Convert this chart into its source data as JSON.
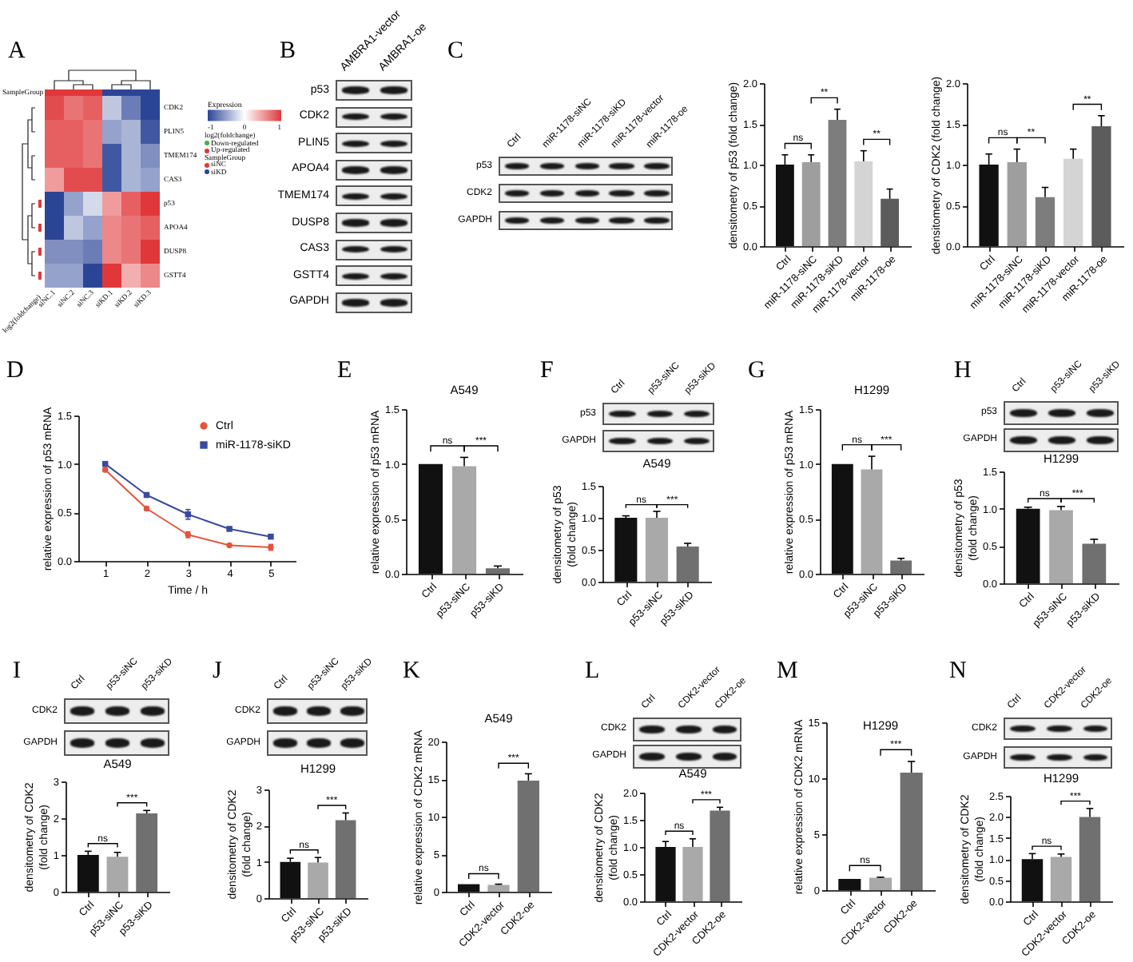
{
  "chart_data": [
    {
      "type": "heatmap",
      "categories": [
        "siNC.1",
        "siNC.2",
        "siNC.3",
        "siKD.1",
        "siKD.2",
        "siKD.3"
      ],
      "y_categories": [
        "CDK2",
        "PLIN5",
        "TMEM174",
        "CAS3",
        "p53",
        "APOA4",
        "DUSP8",
        "GSTT4"
      ],
      "cells": [
        [
          0.9,
          0.7,
          0.8,
          -0.3,
          -0.7,
          -1.0
        ],
        [
          0.8,
          0.8,
          0.7,
          -0.5,
          -0.4,
          -0.9
        ],
        [
          0.8,
          0.8,
          0.7,
          -0.9,
          -0.4,
          -0.6
        ],
        [
          0.5,
          0.9,
          0.9,
          -0.9,
          -0.4,
          -0.5
        ],
        [
          -1.0,
          -0.5,
          -0.2,
          0.5,
          0.8,
          1.0
        ],
        [
          -1.0,
          -0.3,
          -0.5,
          0.6,
          0.7,
          0.8
        ],
        [
          -0.6,
          -0.6,
          -0.7,
          0.6,
          0.7,
          1.0
        ],
        [
          -0.5,
          -0.5,
          -1.0,
          1.0,
          0.4,
          0.6
        ]
      ],
      "clabel": "Expression",
      "clim": [
        -1,
        1
      ],
      "cticks": [
        -1,
        0,
        1
      ],
      "annotations": [
        "A",
        "SampleGroup",
        "log2(foldchange)",
        "Down-regulated",
        "Up-regulated",
        "SampleGroup",
        "siNC",
        "siKD",
        "log2(foldchange)"
      ]
    },
    {
      "type": "other",
      "categories": [
        "AMBRA1-vector",
        "AMBRA1-oe"
      ],
      "y_categories": [
        "p53",
        "CDK2",
        "PLIN5",
        "APOA4",
        "TMEM174",
        "DUSP8",
        "CAS3",
        "GSTT4",
        "GAPDH"
      ],
      "annotations": [
        "B"
      ]
    },
    {
      "type": "other",
      "categories": [
        "Ctrl",
        "miR-1178-siNC",
        "miR-1178-siKD",
        "miR-1178-vector",
        "miR-1178-oe"
      ],
      "y_categories": [
        "p53",
        "CDK2",
        "GAPDH"
      ],
      "annotations": [
        "C"
      ]
    },
    {
      "type": "bar",
      "categories": [
        "Ctrl",
        "miR-1178-siNC",
        "miR-1178-siKD",
        "miR-1178-vector",
        "miR-1178-oe"
      ],
      "values": [
        1.0,
        1.03,
        1.55,
        1.04,
        0.58
      ],
      "errors": [
        0.12,
        0.09,
        0.13,
        0.13,
        0.12
      ],
      "colors": [
        "#111111",
        "#9e9e9e",
        "#7d7d7d",
        "#d4d4d4",
        "#5c5c5c"
      ],
      "ylabel": "densitometry of  p53 (fold change)",
      "ylim": [
        0,
        2
      ],
      "yticks": [
        {
          "value": 0,
          "label": "0.0"
        },
        0.5,
        {
          "value": 1,
          "label": "1.0"
        },
        1.5,
        {
          "value": 2,
          "label": "2.0"
        }
      ],
      "annotations": [
        "ns",
        "**",
        "**"
      ]
    },
    {
      "type": "bar",
      "categories": [
        "Ctrl",
        "miR-1178-siNC",
        "miR-1178-siKD",
        "miR-1178-vector",
        "miR-1178-oe"
      ],
      "values": [
        1.0,
        1.03,
        0.6,
        1.07,
        1.47
      ],
      "errors": [
        0.13,
        0.16,
        0.12,
        0.12,
        0.13
      ],
      "colors": [
        "#111111",
        "#9e9e9e",
        "#7d7d7d",
        "#d4d4d4",
        "#5c5c5c"
      ],
      "ylabel": "densitometry of  CDK2 (fold change)",
      "ylim": [
        0,
        2
      ],
      "yticks": [
        {
          "value": 0,
          "label": "0.0"
        },
        0.5,
        {
          "value": 1,
          "label": "1.0"
        },
        1.5,
        {
          "value": 2,
          "label": "2.0"
        }
      ],
      "annotations": [
        "ns",
        "**",
        "**"
      ]
    },
    {
      "type": "line",
      "x": [
        1,
        2,
        3,
        4,
        5
      ],
      "series": [
        {
          "name": "Ctrl",
          "color": "#e4543c",
          "values": [
            0.94,
            0.54,
            0.27,
            0.16,
            0.14
          ],
          "errors": [
            0.02,
            0.02,
            0.03,
            0.01,
            0.03
          ],
          "marker": "circle"
        },
        {
          "name": "miR-1178-siKD",
          "color": "#3a4a9e",
          "values": [
            1.0,
            0.68,
            0.48,
            0.33,
            0.25
          ],
          "errors": [
            0.01,
            0.01,
            0.05,
            0.01,
            0.02
          ],
          "marker": "square"
        }
      ],
      "xlabel": "Time / h",
      "ylabel": "relative expression of p53 mRNA",
      "xlim": [
        0.35,
        5.6
      ],
      "xticks": [
        1,
        2,
        3,
        4,
        5
      ],
      "ylim": [
        0,
        1.5
      ],
      "yticks": [
        {
          "value": 0,
          "label": "0.0"
        },
        0.5,
        {
          "value": 1,
          "label": "1.0"
        },
        1.5
      ],
      "legend": "top right",
      "annotations": [
        "D"
      ]
    },
    {
      "type": "bar",
      "title": "A549",
      "categories": [
        "Ctrl",
        "p53-siNC",
        "p53-siKD"
      ],
      "values": [
        1.0,
        0.98,
        0.05
      ],
      "errors": [
        null,
        0.08,
        0.02
      ],
      "colors": [
        "#111111",
        "#a9a9a9",
        "#707070"
      ],
      "ylabel": "relative expression of p53 mRNA",
      "ylim": [
        0,
        1.5
      ],
      "yticks": [
        {
          "value": 0,
          "label": "0.0"
        },
        0.5,
        {
          "value": 1,
          "label": "1.0"
        },
        1.5
      ],
      "annotations": [
        "E",
        "ns",
        "***"
      ]
    },
    {
      "type": "other",
      "categories": [
        "Ctrl",
        "p53-siNC",
        "p53-siKD"
      ],
      "y_categories": [
        "p53",
        "GAPDH"
      ],
      "annotations": [
        "F"
      ]
    },
    {
      "type": "bar",
      "title": "A549",
      "categories": [
        "Ctrl",
        "p53-siNC",
        "p53-siKD"
      ],
      "values": [
        1.0,
        1.0,
        0.55
      ],
      "errors": [
        0.03,
        0.1,
        0.05
      ],
      "colors": [
        "#111111",
        "#a9a9a9",
        "#707070"
      ],
      "ylabel": "densitometry of p53\n(fold change)",
      "ylim": [
        0,
        1.5
      ],
      "yticks": [
        {
          "value": 0,
          "label": "0.0"
        },
        0.5,
        {
          "value": 1,
          "label": "1.0"
        },
        1.5
      ],
      "annotations": [
        "ns",
        "***"
      ]
    },
    {
      "type": "bar",
      "title": "H1299",
      "categories": [
        "Ctrl",
        "p53-siNC",
        "p53-siKD"
      ],
      "values": [
        1.0,
        0.95,
        0.12
      ],
      "errors": [
        null,
        0.12,
        0.02
      ],
      "colors": [
        "#111111",
        "#a9a9a9",
        "#707070"
      ],
      "ylabel": "relative expression of p53 mRNA",
      "ylim": [
        0,
        1.5
      ],
      "yticks": [
        {
          "value": 0,
          "label": "0.0"
        },
        0.5,
        {
          "value": 1,
          "label": "1.0"
        },
        1.5
      ],
      "annotations": [
        "G",
        "ns",
        "***"
      ]
    },
    {
      "type": "other",
      "categories": [
        "Ctrl",
        "p53-siNC",
        "p53-siKD"
      ],
      "y_categories": [
        "p53",
        "GAPDH"
      ],
      "annotations": [
        "H"
      ]
    },
    {
      "type": "bar",
      "title": "H1299",
      "categories": [
        "Ctrl",
        "p53-siNC",
        "p53-siKD"
      ],
      "values": [
        1.0,
        0.98,
        0.53
      ],
      "errors": [
        0.02,
        0.05,
        0.06
      ],
      "colors": [
        "#111111",
        "#a9a9a9",
        "#707070"
      ],
      "ylabel": "densitometry of p53\n(fold change)",
      "ylim": [
        0,
        1.5
      ],
      "yticks": [
        {
          "value": 0,
          "label": "0.0"
        },
        0.5,
        {
          "value": 1,
          "label": "1.0"
        },
        1.5
      ],
      "annotations": [
        "ns",
        "***"
      ]
    },
    {
      "type": "other",
      "categories": [
        "Ctrl",
        "p53-siNC",
        "p53-siKD"
      ],
      "y_categories": [
        "CDK2",
        "GAPDH"
      ],
      "annotations": [
        "I"
      ]
    },
    {
      "type": "bar",
      "title": "A549",
      "categories": [
        "Ctrl",
        "p53-siNC",
        "p53-siKD"
      ],
      "values": [
        1.0,
        0.95,
        2.13
      ],
      "errors": [
        0.1,
        0.12,
        0.08
      ],
      "colors": [
        "#111111",
        "#a9a9a9",
        "#707070"
      ],
      "ylabel": "densitometry of CDK2\n(fold change)",
      "ylim": [
        0,
        3
      ],
      "yticks": [
        0,
        1,
        2,
        3
      ],
      "annotations": [
        "ns",
        "***"
      ]
    },
    {
      "type": "other",
      "categories": [
        "Ctrl",
        "p53-siNC",
        "p53-siKD"
      ],
      "y_categories": [
        "CDK2",
        "GAPDH"
      ],
      "annotations": [
        "J"
      ]
    },
    {
      "type": "bar",
      "title": "H1299",
      "categories": [
        "Ctrl",
        "p53-siNC",
        "p53-siKD"
      ],
      "values": [
        1.0,
        0.98,
        2.15
      ],
      "errors": [
        0.1,
        0.14,
        0.2
      ],
      "colors": [
        "#111111",
        "#a9a9a9",
        "#707070"
      ],
      "ylabel": "densitometry of CDK2\n(fold change)",
      "ylim": [
        0,
        3
      ],
      "yticks": [
        0,
        1,
        2,
        3
      ],
      "annotations": [
        "ns",
        "***"
      ]
    },
    {
      "type": "bar",
      "title": "A549",
      "categories": [
        "Ctrl",
        "CDK2-vector",
        "CDK2-oe"
      ],
      "values": [
        1.0,
        0.9,
        14.8
      ],
      "errors": [
        null,
        0.1,
        0.9
      ],
      "colors": [
        "#111111",
        "#a9a9a9",
        "#707070"
      ],
      "ylabel": "relative expression of CDK2 mRNA",
      "ylim": [
        0,
        20
      ],
      "yticks": [
        0,
        5,
        10,
        15,
        20
      ],
      "annotations": [
        "K",
        "ns",
        "***"
      ]
    },
    {
      "type": "other",
      "categories": [
        "Ctrl",
        "CDK2-vector",
        "CDK2-oe"
      ],
      "y_categories": [
        "CDK2",
        "GAPDH"
      ],
      "annotations": [
        "L"
      ]
    },
    {
      "type": "bar",
      "title": "A549",
      "categories": [
        "Ctrl",
        "CDK2-vector",
        "CDK2-oe"
      ],
      "values": [
        1.0,
        1.0,
        1.67
      ],
      "errors": [
        0.1,
        0.15,
        0.06
      ],
      "colors": [
        "#111111",
        "#a9a9a9",
        "#707070"
      ],
      "ylabel": "densitometry of CDK2\n(fold change)",
      "ylim": [
        0,
        2
      ],
      "yticks": [
        {
          "value": 0,
          "label": "0.0"
        },
        0.5,
        {
          "value": 1,
          "label": "1.0"
        },
        1.5,
        {
          "value": 2,
          "label": "2.0"
        }
      ],
      "annotations": [
        "ns",
        "***"
      ]
    },
    {
      "type": "bar",
      "title": "H1299",
      "categories": [
        "Ctrl",
        "CDK2-vector",
        "CDK2-oe"
      ],
      "values": [
        1.0,
        1.1,
        10.5
      ],
      "errors": [
        null,
        0.05,
        1.0
      ],
      "colors": [
        "#111111",
        "#a9a9a9",
        "#707070"
      ],
      "ylabel": "relative expression of CDK2 mRNA",
      "ylim": [
        0,
        15
      ],
      "yticks": [
        0,
        5,
        10,
        15
      ],
      "annotations": [
        "M",
        "ns",
        "***"
      ]
    },
    {
      "type": "other",
      "categories": [
        "Ctrl",
        "CDK2-vector",
        "CDK2-oe"
      ],
      "y_categories": [
        "CDK2",
        "GAPDH"
      ],
      "annotations": [
        "N"
      ]
    },
    {
      "type": "bar",
      "title": "H1299",
      "categories": [
        "Ctrl",
        "CDK2-vector",
        "CDK2-oe"
      ],
      "values": [
        1.0,
        1.05,
        2.0
      ],
      "errors": [
        0.13,
        0.07,
        0.2
      ],
      "colors": [
        "#111111",
        "#a9a9a9",
        "#707070"
      ],
      "ylabel": "densitometry of CDK2\n(fold change)",
      "ylim": [
        0,
        2.5
      ],
      "yticks": [
        {
          "value": 0,
          "label": "0.0"
        },
        0.5,
        {
          "value": 1,
          "label": "1.0"
        },
        1.5,
        {
          "value": 2,
          "label": "2.0"
        },
        2.5
      ],
      "annotations": [
        "ns",
        "***"
      ]
    }
  ]
}
